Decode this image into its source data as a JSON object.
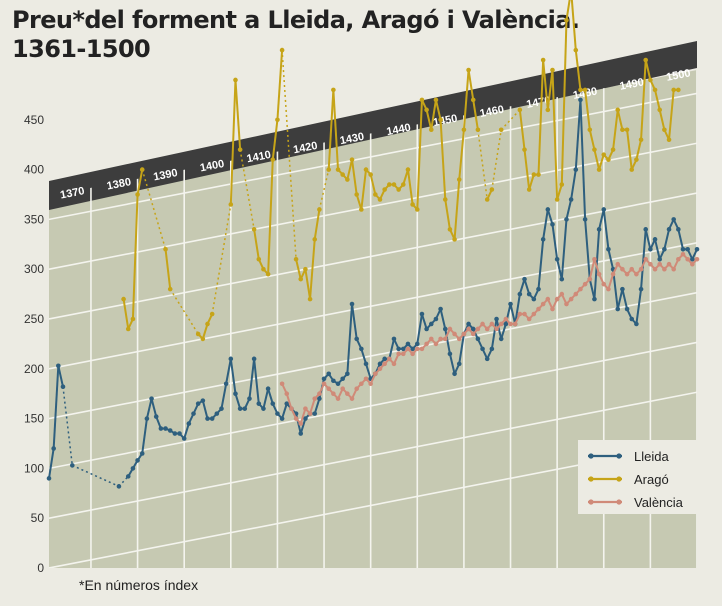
{
  "title_line1": "Preu*del forment a Lleida, Aragó i València.",
  "title_line2": "1361-1500",
  "footnote": "*En números índex",
  "chart_data": {
    "type": "line",
    "y_ticks": [
      0,
      50,
      100,
      150,
      200,
      250,
      300,
      350,
      400,
      450
    ],
    "x_ticks": [
      1370,
      1380,
      1390,
      1400,
      1410,
      1420,
      1430,
      1440,
      1450,
      1460,
      1470,
      1480,
      1490,
      1500
    ],
    "ylim": [
      0,
      500
    ],
    "xlim": [
      1361,
      1500
    ],
    "grid": true,
    "legend_position": "bottom-right",
    "series": [
      {
        "name": "Lleida",
        "color": "#2e5f7e",
        "x": [
          1361,
          1362,
          1363,
          1364,
          1366,
          1376,
          1378,
          1379,
          1380,
          1381,
          1382,
          1383,
          1384,
          1385,
          1386,
          1387,
          1388,
          1389,
          1390,
          1391,
          1392,
          1393,
          1394,
          1395,
          1396,
          1397,
          1398,
          1399,
          1400,
          1401,
          1402,
          1403,
          1404,
          1405,
          1406,
          1407,
          1408,
          1409,
          1410,
          1411,
          1412,
          1413,
          1414,
          1415,
          1416,
          1417,
          1418,
          1419,
          1420,
          1421,
          1422,
          1423,
          1424,
          1425,
          1426,
          1427,
          1428,
          1429,
          1430,
          1431,
          1432,
          1433,
          1434,
          1435,
          1436,
          1437,
          1438,
          1439,
          1440,
          1441,
          1442,
          1443,
          1444,
          1445,
          1446,
          1447,
          1448,
          1449,
          1450,
          1451,
          1452,
          1453,
          1454,
          1455,
          1456,
          1457,
          1458,
          1459,
          1460,
          1461,
          1462,
          1463,
          1464,
          1465,
          1466,
          1467,
          1468,
          1469,
          1470,
          1471,
          1472,
          1473,
          1474,
          1475,
          1476,
          1477,
          1478,
          1479,
          1480,
          1481,
          1482,
          1483,
          1484,
          1485,
          1486,
          1487,
          1488,
          1489,
          1490,
          1491,
          1492,
          1493,
          1494,
          1495,
          1496,
          1497,
          1498,
          1499,
          1500
        ],
        "y": [
          90,
          120,
          203,
          182,
          103,
          82,
          92,
          100,
          108,
          115,
          150,
          170,
          152,
          140,
          140,
          138,
          135,
          135,
          130,
          145,
          155,
          165,
          168,
          150,
          150,
          155,
          160,
          185,
          210,
          175,
          160,
          160,
          170,
          210,
          165,
          160,
          180,
          165,
          155,
          150,
          165,
          160,
          155,
          135,
          150,
          155,
          155,
          170,
          190,
          195,
          188,
          185,
          190,
          195,
          265,
          230,
          220,
          205,
          190,
          195,
          205,
          210,
          210,
          230,
          220,
          220,
          225,
          220,
          225,
          255,
          240,
          245,
          250,
          260,
          240,
          215,
          195,
          205,
          235,
          245,
          240,
          230,
          220,
          210,
          220,
          250,
          230,
          245,
          265,
          245,
          275,
          290,
          275,
          270,
          280,
          330,
          360,
          345,
          310,
          290,
          350,
          370,
          400,
          470,
          350,
          290,
          270,
          340,
          360,
          320,
          300,
          260,
          280,
          260,
          250,
          245,
          280,
          340,
          320,
          330,
          310,
          320,
          340,
          350,
          340,
          320,
          320,
          310,
          320
        ]
      },
      {
        "name": "Aragó",
        "color": "#c6a418",
        "x": [
          1377,
          1378,
          1379,
          1380,
          1381,
          1386,
          1387,
          1393,
          1394,
          1395,
          1396,
          1400,
          1401,
          1402,
          1405,
          1406,
          1407,
          1408,
          1409,
          1410,
          1411,
          1414,
          1415,
          1416,
          1417,
          1418,
          1419,
          1421,
          1422,
          1423,
          1424,
          1425,
          1426,
          1427,
          1428,
          1429,
          1430,
          1431,
          1432,
          1433,
          1434,
          1435,
          1436,
          1437,
          1438,
          1439,
          1440,
          1441,
          1442,
          1443,
          1444,
          1445,
          1446,
          1447,
          1448,
          1449,
          1450,
          1451,
          1452,
          1453,
          1455,
          1456,
          1458,
          1462,
          1463,
          1464,
          1465,
          1466,
          1467,
          1468,
          1469,
          1470,
          1471,
          1472,
          1473,
          1474,
          1475,
          1476,
          1477,
          1478,
          1479,
          1480,
          1481,
          1482,
          1483,
          1484,
          1485,
          1486,
          1487,
          1488,
          1489,
          1490,
          1491,
          1492,
          1493,
          1494,
          1495,
          1496
        ],
        "y": [
          270,
          240,
          250,
          375,
          400,
          320,
          280,
          235,
          230,
          245,
          255,
          365,
          490,
          420,
          340,
          310,
          300,
          295,
          410,
          450,
          520,
          310,
          290,
          300,
          270,
          330,
          360,
          400,
          480,
          400,
          395,
          390,
          410,
          375,
          360,
          400,
          395,
          375,
          370,
          380,
          385,
          385,
          380,
          385,
          400,
          365,
          360,
          470,
          460,
          440,
          470,
          450,
          370,
          340,
          330,
          390,
          440,
          500,
          470,
          440,
          370,
          380,
          440,
          460,
          420,
          380,
          395,
          395,
          510,
          460,
          500,
          370,
          385,
          550,
          580,
          520,
          480,
          480,
          440,
          420,
          400,
          415,
          410,
          420,
          460,
          440,
          440,
          400,
          410,
          430,
          510,
          490,
          480,
          460,
          440,
          430,
          480,
          480
        ]
      },
      {
        "name": "València",
        "color": "#d08a78",
        "x": [
          1411,
          1412,
          1413,
          1414,
          1415,
          1416,
          1417,
          1418,
          1419,
          1420,
          1421,
          1422,
          1423,
          1424,
          1425,
          1426,
          1427,
          1428,
          1429,
          1430,
          1431,
          1432,
          1433,
          1434,
          1435,
          1436,
          1437,
          1438,
          1439,
          1440,
          1441,
          1442,
          1443,
          1444,
          1445,
          1446,
          1447,
          1448,
          1449,
          1450,
          1451,
          1452,
          1453,
          1454,
          1455,
          1456,
          1457,
          1458,
          1459,
          1460,
          1461,
          1462,
          1463,
          1464,
          1465,
          1466,
          1467,
          1468,
          1469,
          1470,
          1471,
          1472,
          1473,
          1474,
          1475,
          1476,
          1477,
          1478,
          1479,
          1480,
          1481,
          1482,
          1483,
          1484,
          1485,
          1486,
          1487,
          1488,
          1489,
          1490,
          1491,
          1492,
          1493,
          1494,
          1495,
          1496,
          1497,
          1498,
          1499,
          1500
        ],
        "y": [
          185,
          175,
          160,
          150,
          145,
          160,
          155,
          170,
          175,
          185,
          180,
          175,
          170,
          180,
          175,
          170,
          180,
          185,
          190,
          185,
          195,
          200,
          205,
          210,
          205,
          215,
          215,
          220,
          215,
          220,
          220,
          225,
          230,
          225,
          230,
          230,
          240,
          235,
          230,
          235,
          240,
          235,
          240,
          245,
          240,
          245,
          240,
          245,
          250,
          245,
          245,
          255,
          255,
          250,
          255,
          260,
          265,
          270,
          260,
          270,
          275,
          265,
          270,
          275,
          280,
          285,
          290,
          310,
          295,
          285,
          280,
          295,
          305,
          300,
          295,
          300,
          295,
          300,
          310,
          305,
          300,
          305,
          300,
          305,
          300,
          310,
          315,
          310,
          305,
          310
        ]
      }
    ]
  }
}
